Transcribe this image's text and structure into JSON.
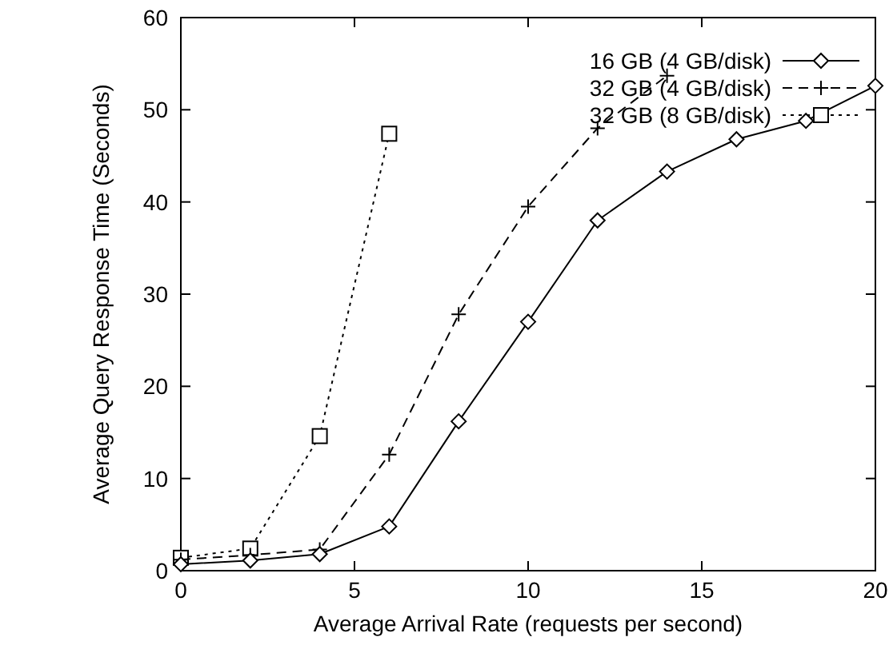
{
  "chart_data": {
    "type": "line",
    "xlabel": "Average Arrival Rate (requests per second)",
    "ylabel": "Average Query Response Time (Seconds)",
    "xlim": [
      0,
      20
    ],
    "ylim": [
      0,
      60
    ],
    "xticks": [
      0,
      5,
      10,
      15,
      20
    ],
    "yticks": [
      0,
      10,
      20,
      30,
      40,
      50,
      60
    ],
    "grid": false,
    "legend": "top right",
    "series": [
      {
        "name": "16 GB (4 GB/disk)",
        "color": "#000000",
        "marker": "diamond",
        "line_style": "solid",
        "x": [
          0,
          2,
          4,
          6,
          8,
          10,
          12,
          14,
          16,
          18,
          20
        ],
        "values": [
          0.7,
          1.1,
          1.8,
          4.8,
          16.2,
          27,
          38,
          43.3,
          46.8,
          48.8,
          52.6
        ]
      },
      {
        "name": "32 GB (4 GB/disk)",
        "color": "#000000",
        "marker": "cross",
        "line_style": "dashed",
        "x": [
          0,
          2,
          4,
          6,
          8,
          10,
          12,
          14
        ],
        "values": [
          1.2,
          1.7,
          2.3,
          12.6,
          27.8,
          39.5,
          48,
          53.7
        ]
      },
      {
        "name": "32 GB (8 GB/disk)",
        "color": "#000000",
        "marker": "square",
        "line_style": "dotted",
        "x": [
          0,
          2,
          4,
          6
        ],
        "values": [
          1.4,
          2.4,
          14.6,
          47.4
        ]
      }
    ]
  }
}
